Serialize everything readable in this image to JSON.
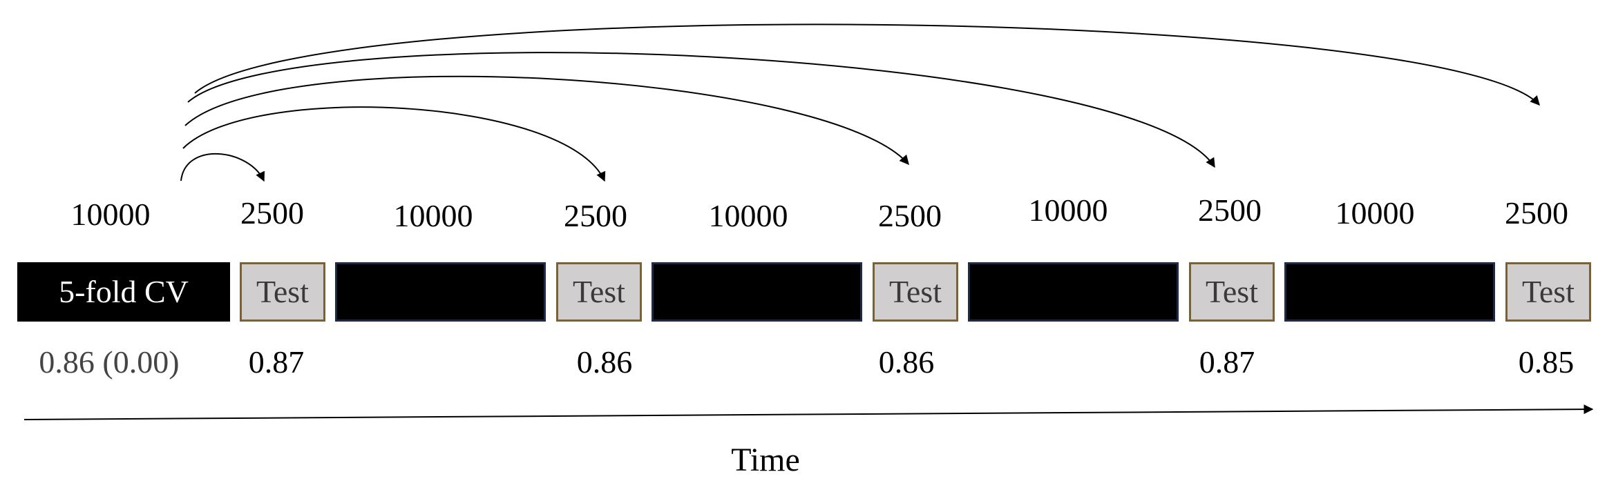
{
  "diagram": {
    "cv_block_label": "5-fold CV",
    "test_label": "Test",
    "time_axis_label": "Time",
    "segments": [
      {
        "train_size": "10000",
        "test_size": "2500"
      },
      {
        "train_size": "10000",
        "test_size": "2500"
      },
      {
        "train_size": "10000",
        "test_size": "2500"
      },
      {
        "train_size": "10000",
        "test_size": "2500"
      },
      {
        "train_size": "10000",
        "test_size": "2500"
      }
    ],
    "cv_score": "0.86 (0.00)",
    "test_scores": [
      "0.87",
      "0.86",
      "0.86",
      "0.87",
      "0.85"
    ],
    "colors": {
      "train": "#000000",
      "test_fill": "#d0cece",
      "test_border": "#7a6236",
      "train_border": "#1f2a44",
      "cv_score_text": "#444444"
    }
  }
}
